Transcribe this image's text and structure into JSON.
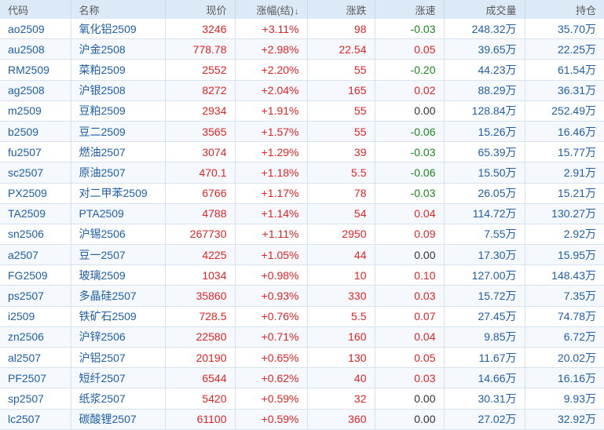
{
  "header": {
    "code": "代码",
    "name": "名称",
    "price": "现价",
    "change_pct": "涨幅(结)",
    "sort_arrow": "↓",
    "change": "涨跌",
    "speed": "涨速",
    "volume": "成交量",
    "open_interest": "持仓"
  },
  "colors": {
    "up": "#e02424",
    "down": "#1a8a1a",
    "flat": "#333333",
    "link": "#1f5fa8",
    "header_bg": "#dce9f7"
  },
  "rows": [
    {
      "code": "ao2509",
      "name": "氧化铝2509",
      "price": "3246",
      "change_pct": "+3.11%",
      "change": "98",
      "speed": "-0.03",
      "speed_dir": "down",
      "volume": "248.32万",
      "oi": "35.70万"
    },
    {
      "code": "au2508",
      "name": "沪金2508",
      "price": "778.78",
      "change_pct": "+2.98%",
      "change": "22.54",
      "speed": "0.05",
      "speed_dir": "up",
      "volume": "39.65万",
      "oi": "22.25万"
    },
    {
      "code": "RM2509",
      "name": "菜粕2509",
      "price": "2552",
      "change_pct": "+2.20%",
      "change": "55",
      "speed": "-0.20",
      "speed_dir": "down",
      "volume": "44.23万",
      "oi": "61.54万"
    },
    {
      "code": "ag2508",
      "name": "沪银2508",
      "price": "8272",
      "change_pct": "+2.04%",
      "change": "165",
      "speed": "0.02",
      "speed_dir": "up",
      "volume": "88.29万",
      "oi": "36.31万"
    },
    {
      "code": "m2509",
      "name": "豆粕2509",
      "price": "2934",
      "change_pct": "+1.91%",
      "change": "55",
      "speed": "0.00",
      "speed_dir": "flat",
      "volume": "128.84万",
      "oi": "252.49万"
    },
    {
      "code": "b2509",
      "name": "豆二2509",
      "price": "3565",
      "change_pct": "+1.57%",
      "change": "55",
      "speed": "-0.06",
      "speed_dir": "down",
      "volume": "15.26万",
      "oi": "16.46万"
    },
    {
      "code": "fu2507",
      "name": "燃油2507",
      "price": "3074",
      "change_pct": "+1.29%",
      "change": "39",
      "speed": "-0.03",
      "speed_dir": "down",
      "volume": "65.39万",
      "oi": "15.77万"
    },
    {
      "code": "sc2507",
      "name": "原油2507",
      "price": "470.1",
      "change_pct": "+1.18%",
      "change": "5.5",
      "speed": "-0.06",
      "speed_dir": "down",
      "volume": "15.50万",
      "oi": "2.91万"
    },
    {
      "code": "PX2509",
      "name": "对二甲苯2509",
      "price": "6766",
      "change_pct": "+1.17%",
      "change": "78",
      "speed": "-0.03",
      "speed_dir": "down",
      "volume": "26.05万",
      "oi": "15.21万"
    },
    {
      "code": "TA2509",
      "name": "PTA2509",
      "price": "4788",
      "change_pct": "+1.14%",
      "change": "54",
      "speed": "0.04",
      "speed_dir": "up",
      "volume": "114.72万",
      "oi": "130.27万"
    },
    {
      "code": "sn2506",
      "name": "沪锡2506",
      "price": "267730",
      "change_pct": "+1.11%",
      "change": "2950",
      "speed": "0.09",
      "speed_dir": "up",
      "volume": "7.55万",
      "oi": "2.92万"
    },
    {
      "code": "a2507",
      "name": "豆一2507",
      "price": "4225",
      "change_pct": "+1.05%",
      "change": "44",
      "speed": "0.00",
      "speed_dir": "flat",
      "volume": "17.30万",
      "oi": "15.95万"
    },
    {
      "code": "FG2509",
      "name": "玻璃2509",
      "price": "1034",
      "change_pct": "+0.98%",
      "change": "10",
      "speed": "0.10",
      "speed_dir": "up",
      "volume": "127.00万",
      "oi": "148.43万"
    },
    {
      "code": "ps2507",
      "name": "多晶硅2507",
      "price": "35860",
      "change_pct": "+0.93%",
      "change": "330",
      "speed": "0.03",
      "speed_dir": "up",
      "volume": "15.72万",
      "oi": "7.35万"
    },
    {
      "code": "i2509",
      "name": "铁矿石2509",
      "price": "728.5",
      "change_pct": "+0.76%",
      "change": "5.5",
      "speed": "0.07",
      "speed_dir": "up",
      "volume": "27.45万",
      "oi": "74.78万"
    },
    {
      "code": "zn2506",
      "name": "沪锌2506",
      "price": "22580",
      "change_pct": "+0.71%",
      "change": "160",
      "speed": "0.04",
      "speed_dir": "up",
      "volume": "9.85万",
      "oi": "6.72万"
    },
    {
      "code": "al2507",
      "name": "沪铝2507",
      "price": "20190",
      "change_pct": "+0.65%",
      "change": "130",
      "speed": "0.05",
      "speed_dir": "up",
      "volume": "11.67万",
      "oi": "20.02万"
    },
    {
      "code": "PF2507",
      "name": "短纤2507",
      "price": "6544",
      "change_pct": "+0.62%",
      "change": "40",
      "speed": "0.03",
      "speed_dir": "up",
      "volume": "14.66万",
      "oi": "16.16万"
    },
    {
      "code": "sp2507",
      "name": "纸浆2507",
      "price": "5420",
      "change_pct": "+0.59%",
      "change": "32",
      "speed": "0.00",
      "speed_dir": "flat",
      "volume": "30.31万",
      "oi": "9.93万"
    },
    {
      "code": "lc2507",
      "name": "碳酸锂2507",
      "price": "61100",
      "change_pct": "+0.59%",
      "change": "360",
      "speed": "0.00",
      "speed_dir": "flat",
      "volume": "27.02万",
      "oi": "32.92万"
    }
  ]
}
